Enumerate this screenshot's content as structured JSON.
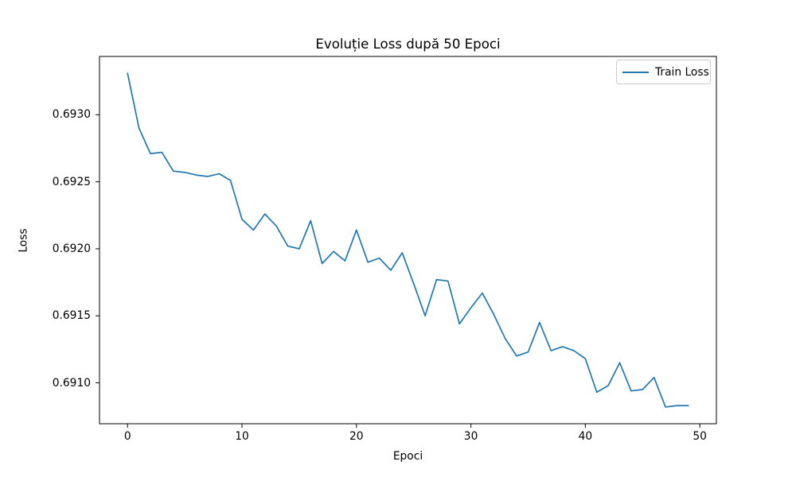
{
  "chart_data": {
    "type": "line",
    "title": "Evoluție Loss după 50 Epoci",
    "xlabel": "Epoci",
    "ylabel": "Loss",
    "grid": false,
    "x": [
      0,
      1,
      2,
      3,
      4,
      5,
      6,
      7,
      8,
      9,
      10,
      11,
      12,
      13,
      14,
      15,
      16,
      17,
      18,
      19,
      20,
      21,
      22,
      23,
      24,
      25,
      26,
      27,
      28,
      29,
      30,
      31,
      32,
      33,
      34,
      35,
      36,
      37,
      38,
      39,
      40,
      41,
      42,
      43,
      44,
      45,
      46,
      47,
      48,
      49
    ],
    "series": [
      {
        "name": "Train Loss",
        "color": "#1f77b4",
        "values": [
          0.69331,
          0.6929,
          0.69271,
          0.69272,
          0.69258,
          0.69257,
          0.69255,
          0.69254,
          0.69256,
          0.69251,
          0.69222,
          0.69214,
          0.69226,
          0.69217,
          0.69202,
          0.692,
          0.69221,
          0.69189,
          0.69198,
          0.69191,
          0.69214,
          0.6919,
          0.69193,
          0.69184,
          0.69197,
          0.69174,
          0.6915,
          0.69177,
          0.69176,
          0.69144,
          0.69156,
          0.69167,
          0.69151,
          0.69133,
          0.6912,
          0.69123,
          0.69145,
          0.69124,
          0.69127,
          0.69124,
          0.69118,
          0.69093,
          0.69098,
          0.69115,
          0.69094,
          0.69095,
          0.69104,
          0.69082,
          0.69083,
          0.69083
        ]
      }
    ],
    "xticks": [
      0,
      10,
      20,
      30,
      40,
      50
    ],
    "yticks": [
      0.691,
      0.6915,
      0.692,
      0.6925,
      0.693
    ],
    "ytick_labels": [
      "0.6910",
      "0.6915",
      "0.6920",
      "0.6925",
      "0.6930"
    ],
    "xlim": [
      -2.45,
      51.45
    ],
    "ylim": [
      0.690695,
      0.693435
    ],
    "legend": {
      "position": "upper right",
      "entries": [
        "Train Loss"
      ]
    },
    "colors": {
      "line": "#1f77b4",
      "spine": "#000000",
      "legend_edge": "#cccccc",
      "background": "#ffffff"
    }
  }
}
